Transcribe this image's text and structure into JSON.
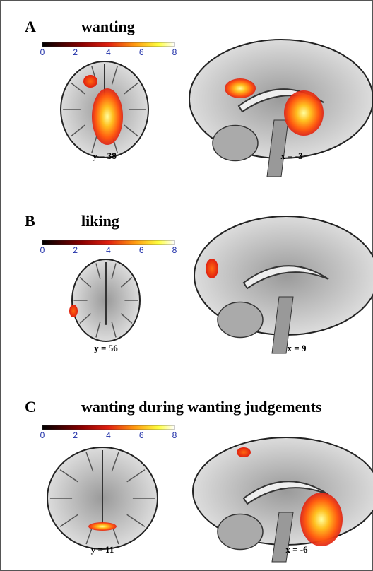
{
  "panels": [
    {
      "label": "A",
      "title": "wanting",
      "colorbar": {
        "lim": [
          0,
          8
        ],
        "ticks": [
          0,
          2,
          4,
          6,
          8
        ]
      },
      "slices": [
        {
          "label": "y = 38"
        },
        {
          "label": "x = -3"
        }
      ]
    },
    {
      "label": "B",
      "title": "liking",
      "colorbar": {
        "lim": [
          0,
          8
        ],
        "ticks": [
          0,
          2,
          4,
          6,
          8
        ]
      },
      "slices": [
        {
          "label": "y = 56"
        },
        {
          "label": "x = 9"
        }
      ]
    },
    {
      "label": "C",
      "title": "wanting during wanting judgements",
      "colorbar": {
        "lim": [
          0,
          8
        ],
        "ticks": [
          0,
          2,
          4,
          6,
          8
        ]
      },
      "slices": [
        {
          "label": "y = 11"
        },
        {
          "label": "x = -6"
        }
      ]
    }
  ]
}
